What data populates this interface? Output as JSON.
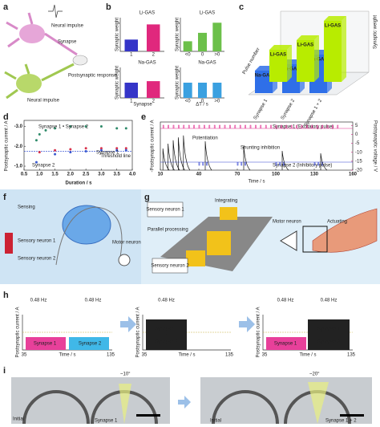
{
  "figure": {
    "a": {
      "label": "a",
      "neural_impulse_1": "Neural impulse",
      "synapse": "Synapse",
      "response": "Postsynaptic response",
      "neural_impulse_2": "Neural impulse"
    },
    "b": {
      "label": "b",
      "ylabel": "Synaptic weight",
      "xlabel_left": "Synapse",
      "xlabel_right": "ΔT / s",
      "charts": [
        {
          "title": "Li-GAS",
          "title_color": "#5cb82e",
          "categories": [
            "1",
            "2"
          ],
          "values": [
            0.35,
            0.8
          ],
          "colors": [
            "#3535c8",
            "#e0287d"
          ]
        },
        {
          "title": "Li-GAS",
          "title_color": "#5cb82e",
          "categories": [
            "<0",
            "0",
            ">0"
          ],
          "values": [
            0.3,
            0.55,
            0.85
          ],
          "colors": [
            "#6cc04a",
            "#6cc04a",
            "#6cc04a"
          ]
        },
        {
          "title": "Na-GAS",
          "title_color": "#2f8fd8",
          "categories": [
            "1",
            "2"
          ],
          "values": [
            0.5,
            0.55
          ],
          "colors": [
            "#3535c8",
            "#e0287d"
          ]
        },
        {
          "title": "Na-GAS",
          "title_color": "#2f8fd8",
          "categories": [
            "<0",
            "0",
            ">0"
          ],
          "values": [
            0.5,
            0.5,
            0.5
          ],
          "colors": [
            "#3aa0e0",
            "#3aa0e0",
            "#3aa0e0"
          ]
        }
      ]
    },
    "c": {
      "label": "c",
      "ylabel": "Synaptic weight",
      "xlabel": "Pulse number",
      "categories": [
        "Synapse 1",
        "Synapse 2",
        "Synapse 1 + 2"
      ],
      "series": [
        {
          "name": "Li-GAS",
          "color": "#b8ec00",
          "values": [
            0.5,
            0.65,
            0.95
          ]
        },
        {
          "name": "Na-GAS",
          "color": "#2f6fe8",
          "values": [
            0.35,
            0.45,
            0.6
          ]
        }
      ]
    },
    "d": {
      "label": "d",
      "type": "scatter",
      "xlabel": "Duration / s",
      "ylabel": "Postsynaptic current / A",
      "xlim": [
        0.5,
        4.0
      ],
      "xticks": [
        0.5,
        {
          "value": 1,
          "label": "1.0"
        },
        1.5,
        {
          "value": 2,
          "label": "2.0"
        },
        2.5,
        {
          "value": 3,
          "label": "3.0"
        },
        3.5,
        {
          "value": 4,
          "label": "4.0"
        }
      ],
      "ylim": [
        -0.8,
        -3.3
      ],
      "yticks": [
        {
          "value": -3,
          "label": "-3.0"
        },
        {
          "value": -2,
          "label": "-2.0"
        },
        {
          "value": -1,
          "label": "-1.0"
        }
      ],
      "series": [
        {
          "name": "Synapse 1 • Synapse 2",
          "color": "#2e8b6a",
          "x": [
            0.9,
            1.0,
            1.2,
            1.5,
            2.0,
            2.5,
            3.0,
            3.5,
            3.8
          ],
          "values": [
            -2.3,
            -2.6,
            -2.8,
            -2.9,
            -3.0,
            -3.0,
            -3.0,
            -2.9,
            -2.9
          ]
        },
        {
          "name": "Synapse 1",
          "color": "#d8304a",
          "x": [
            1.0,
            1.5,
            2.0,
            2.5,
            3.0,
            3.5,
            3.8
          ],
          "values": [
            -1.7,
            -1.8,
            -1.85,
            -1.9,
            -1.9,
            -1.9,
            -1.9
          ]
        },
        {
          "name": "Synapse 2",
          "color": "#3a5ad0",
          "x": [
            0.9,
            1.5,
            2.0,
            2.5,
            3.0,
            3.5,
            3.8
          ],
          "values": [
            -1.2,
            -1.6,
            -1.7,
            -1.75,
            -1.8,
            -1.8,
            -1.8
          ]
        }
      ],
      "threshold": {
        "name": "Threshold line",
        "value": -1.75,
        "color": "#2040d0"
      }
    },
    "e": {
      "label": "e",
      "type": "line",
      "xlabel": "Time / s",
      "ylabel": "-Postsynaptic current / A",
      "y2label": "Postsynaptic voltage / V",
      "xlim": [
        10,
        160
      ],
      "xticks": [
        10,
        40,
        70,
        100,
        130,
        160
      ],
      "ylim": [
        0,
        1
      ],
      "y2lim": [
        -20,
        7
      ],
      "y2ticks": [
        5,
        0,
        -5,
        -10,
        -15,
        -20
      ],
      "x": [
        12,
        16,
        20,
        24,
        28,
        45,
        75,
        105,
        135
      ],
      "values": [
        0.45,
        0.55,
        0.62,
        0.68,
        0.72,
        0.6,
        0.5,
        0.4,
        0.35
      ],
      "excitatory": "Synapse 1 (Excitatory pulse)",
      "inhibitory": "Synapse 2 (Inhibitory pulse)",
      "potentiation": "Potentiation",
      "shunting": "Shunting inhibition"
    },
    "f": {
      "label": "f",
      "sensing": "Sensing",
      "sensory_1": "Sensory neuron 1",
      "sensory_2": "Sensory neuron 2",
      "motor": "Motor neuron"
    },
    "g": {
      "label": "g",
      "integrating": "Integrating",
      "sensory_1": "Sensory neuron 1",
      "sensory_2": "Sensory neuron 2",
      "parallel": "Parallel processing",
      "motor": "Motor neuron",
      "actuating": "Actuating"
    },
    "h": {
      "label": "h",
      "ylabel": "Postsynaptic current / A",
      "xlabel": "Time / s",
      "xticks": [
        35,
        135
      ],
      "freq": "0.48 Hz",
      "synapse_1": "Synapse 1",
      "synapse_2": "Synapse 2",
      "plus": "+"
    },
    "i": {
      "label": "i",
      "initial": "Initial",
      "synapse_1": "Synapse 1",
      "angle_1": "~10°",
      "synapse_12": "Synapse 1 + 2",
      "angle_2": "~20°"
    }
  }
}
